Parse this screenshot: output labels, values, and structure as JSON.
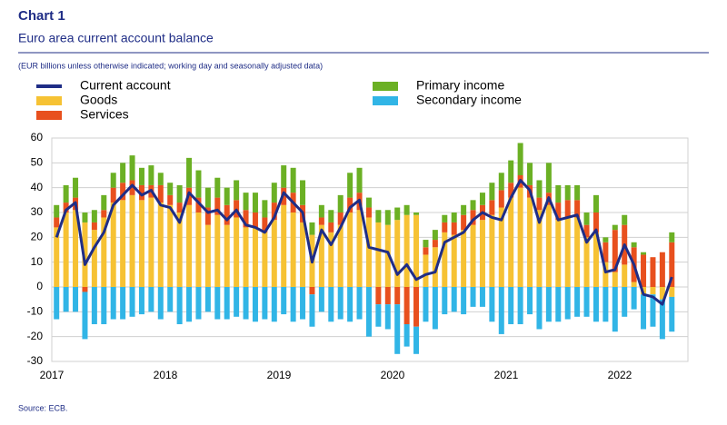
{
  "chart_data": {
    "type": "bar",
    "stacked": true,
    "title": "Chart 1",
    "subtitle": "Euro area current account balance",
    "note": "(EUR billions unless otherwise indicated; working day and seasonally adjusted data)",
    "source": "Source: ECB.",
    "categories": [
      "2017",
      null,
      null,
      null,
      null,
      null,
      null,
      null,
      null,
      null,
      null,
      null,
      "2018",
      null,
      null,
      null,
      null,
      null,
      null,
      null,
      null,
      null,
      null,
      null,
      "2019",
      null,
      null,
      null,
      null,
      null,
      null,
      null,
      null,
      null,
      null,
      null,
      "2020",
      null,
      null,
      null,
      null,
      null,
      null,
      null,
      null,
      null,
      null,
      null,
      "2021",
      null,
      null,
      null,
      null,
      null,
      null,
      null,
      null,
      null,
      null,
      null,
      "2022",
      null,
      null,
      null,
      null,
      null
    ],
    "series": [
      {
        "name": "Current account",
        "type": "line",
        "color": "#1f2d86",
        "values": [
          20,
          31,
          34,
          9,
          16,
          22,
          33,
          37,
          41,
          37,
          39,
          33,
          32,
          26,
          38,
          34,
          30,
          31,
          27,
          31,
          25,
          24,
          22,
          28,
          38,
          34,
          30,
          10,
          23,
          17,
          24,
          32,
          35,
          16,
          15,
          14,
          5,
          9,
          3,
          5,
          6,
          18,
          20,
          22,
          27,
          30,
          28,
          27,
          36,
          43,
          39,
          26,
          36,
          27,
          28,
          29,
          18,
          23,
          6,
          7,
          17,
          9,
          -3,
          -4,
          -7,
          4
        ]
      },
      {
        "name": "Goods",
        "type": "bar",
        "color": "#f6c234",
        "values": [
          24,
          30,
          31,
          26,
          23,
          28,
          34,
          35,
          37,
          35,
          36,
          34,
          33,
          30,
          33,
          30,
          25,
          29,
          25,
          28,
          24,
          24,
          22,
          27,
          33,
          30,
          26,
          21,
          25,
          22,
          25,
          30,
          31,
          28,
          26,
          25,
          27,
          29,
          29,
          13,
          16,
          22,
          21,
          23,
          25,
          27,
          29,
          32,
          36,
          40,
          36,
          31,
          33,
          27,
          28,
          28,
          20,
          22,
          10,
          6,
          9,
          2,
          -3,
          -3,
          -5,
          -4
        ]
      },
      {
        "name": "Services",
        "type": "bar",
        "color": "#e8501e",
        "values": [
          4,
          4,
          5,
          -2,
          3,
          3,
          6,
          7,
          6,
          6,
          5,
          7,
          4,
          4,
          7,
          6,
          7,
          7,
          8,
          7,
          7,
          6,
          6,
          7,
          7,
          8,
          7,
          -3,
          3,
          4,
          5,
          6,
          7,
          4,
          -7,
          -7,
          -7,
          -15,
          -16,
          3,
          3,
          4,
          5,
          6,
          6,
          6,
          6,
          7,
          6,
          5,
          5,
          5,
          5,
          7,
          7,
          7,
          5,
          8,
          8,
          17,
          16,
          14,
          13,
          12,
          14,
          18
        ]
      },
      {
        "name": "Primary income",
        "type": "bar",
        "color": "#6bb024",
        "values": [
          5,
          7,
          8,
          4,
          5,
          6,
          6,
          8,
          10,
          7,
          8,
          5,
          5,
          7,
          12,
          11,
          8,
          8,
          7,
          8,
          7,
          8,
          7,
          8,
          9,
          10,
          10,
          5,
          5,
          5,
          7,
          10,
          10,
          4,
          5,
          6,
          5,
          4,
          1,
          3,
          4,
          3,
          4,
          4,
          4,
          5,
          7,
          7,
          9,
          13,
          9,
          7,
          12,
          7,
          6,
          6,
          5,
          7,
          2,
          2,
          4,
          2,
          1,
          0,
          0,
          4
        ]
      },
      {
        "name": "Secondary income",
        "type": "bar",
        "color": "#31b5e6",
        "values": [
          -13,
          -10,
          -10,
          -19,
          -15,
          -15,
          -13,
          -13,
          -12,
          -11,
          -10,
          -13,
          -10,
          -15,
          -14,
          -13,
          -10,
          -13,
          -13,
          -12,
          -13,
          -14,
          -13,
          -14,
          -11,
          -14,
          -13,
          -13,
          -10,
          -14,
          -13,
          -14,
          -13,
          -20,
          -9,
          -10,
          -20,
          -9,
          -11,
          -14,
          -17,
          -11,
          -10,
          -11,
          -8,
          -8,
          -14,
          -19,
          -15,
          -15,
          -11,
          -17,
          -14,
          -14,
          -13,
          -12,
          -12,
          -14,
          -14,
          -18,
          -12,
          -9,
          -14,
          -13,
          -16,
          -14
        ]
      }
    ],
    "ylim": [
      -30,
      60
    ],
    "yticks": [
      -30,
      -20,
      -10,
      0,
      10,
      20,
      30,
      40,
      50,
      60
    ],
    "grid": true
  }
}
